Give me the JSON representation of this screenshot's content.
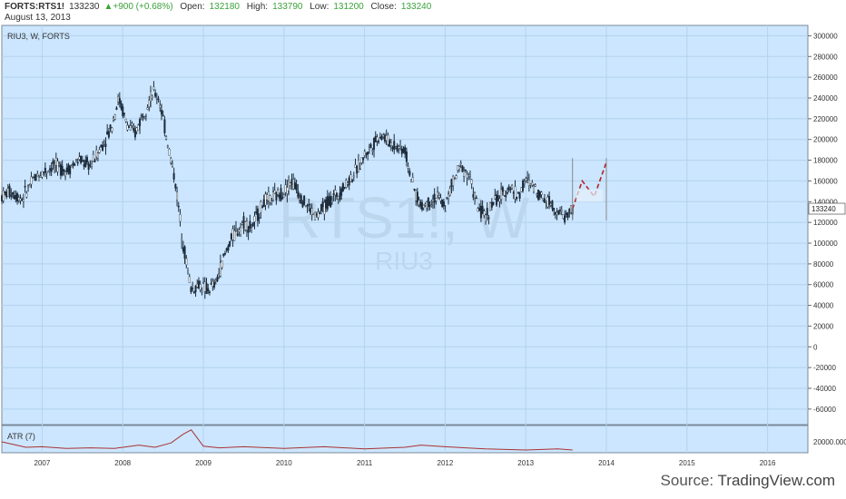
{
  "header": {
    "symbol": "FORTS:RTS1!",
    "last": "133230",
    "change": "▲+900 (+0.68%)",
    "open_label": "Open:",
    "open": "132180",
    "high_label": "High:",
    "high": "133790",
    "low_label": "Low:",
    "low": "131200",
    "close_label": "Close:",
    "close": "133240",
    "date": "August 13, 2013"
  },
  "pane_label": "RIU3, W, FORTS",
  "watermark": {
    "main": "RTS1!, W",
    "sub": "RIU3"
  },
  "atr_label": "ATR (7)",
  "source_prefix": "Source:",
  "source_name": "TradingView.com",
  "colors": {
    "background": "#cce6ff",
    "candle": "#1c2b3a",
    "atr_line": "#a83232",
    "projection": "#b22222",
    "price_tag": "#ffffff"
  },
  "chart_data": [
    {
      "type": "candlestick",
      "title": "RIU3, W, FORTS",
      "x_ticks": [
        "2007",
        "2008",
        "2009",
        "2010",
        "2011",
        "2012",
        "2013",
        "2014",
        "2015",
        "2016"
      ],
      "y_ticks": [
        300000,
        280000,
        260000,
        240000,
        220000,
        200000,
        180000,
        160000,
        140000,
        120000,
        100000,
        80000,
        60000,
        40000,
        20000,
        0,
        -20000,
        -40000,
        -60000
      ],
      "ylim": [
        -75000,
        310000
      ],
      "xlim": [
        2006.5,
        2016.5
      ],
      "current_price": 133240,
      "price_path": [
        [
          2006.5,
          145000
        ],
        [
          2006.6,
          150000
        ],
        [
          2006.75,
          143000
        ],
        [
          2006.9,
          162000
        ],
        [
          2007.0,
          168000
        ],
        [
          2007.15,
          175000
        ],
        [
          2007.3,
          170000
        ],
        [
          2007.45,
          180000
        ],
        [
          2007.6,
          175000
        ],
        [
          2007.75,
          195000
        ],
        [
          2007.85,
          210000
        ],
        [
          2007.95,
          240000
        ],
        [
          2008.05,
          215000
        ],
        [
          2008.15,
          205000
        ],
        [
          2008.25,
          225000
        ],
        [
          2008.38,
          245000
        ],
        [
          2008.45,
          240000
        ],
        [
          2008.55,
          200000
        ],
        [
          2008.65,
          160000
        ],
        [
          2008.75,
          100000
        ],
        [
          2008.85,
          55000
        ],
        [
          2008.95,
          60000
        ],
        [
          2009.05,
          55000
        ],
        [
          2009.15,
          60000
        ],
        [
          2009.25,
          85000
        ],
        [
          2009.35,
          105000
        ],
        [
          2009.5,
          120000
        ],
        [
          2009.6,
          115000
        ],
        [
          2009.75,
          140000
        ],
        [
          2009.9,
          145000
        ],
        [
          2010.0,
          150000
        ],
        [
          2010.1,
          160000
        ],
        [
          2010.25,
          140000
        ],
        [
          2010.4,
          125000
        ],
        [
          2010.55,
          140000
        ],
        [
          2010.7,
          150000
        ],
        [
          2010.9,
          170000
        ],
        [
          2011.0,
          185000
        ],
        [
          2011.1,
          195000
        ],
        [
          2011.2,
          205000
        ],
        [
          2011.35,
          195000
        ],
        [
          2011.5,
          190000
        ],
        [
          2011.6,
          155000
        ],
        [
          2011.7,
          135000
        ],
        [
          2011.8,
          140000
        ],
        [
          2011.9,
          145000
        ],
        [
          2012.0,
          135000
        ],
        [
          2012.1,
          160000
        ],
        [
          2012.2,
          175000
        ],
        [
          2012.3,
          165000
        ],
        [
          2012.4,
          135000
        ],
        [
          2012.5,
          125000
        ],
        [
          2012.6,
          140000
        ],
        [
          2012.7,
          145000
        ],
        [
          2012.8,
          155000
        ],
        [
          2012.9,
          145000
        ],
        [
          2013.0,
          160000
        ],
        [
          2013.1,
          155000
        ],
        [
          2013.2,
          145000
        ],
        [
          2013.3,
          140000
        ],
        [
          2013.4,
          130000
        ],
        [
          2013.5,
          125000
        ],
        [
          2013.58,
          133240
        ]
      ],
      "projection": [
        [
          2013.58,
          133000
        ],
        [
          2013.7,
          160000
        ],
        [
          2013.85,
          145000
        ],
        [
          2014.0,
          178000
        ]
      ]
    },
    {
      "type": "line",
      "title": "ATR (7)",
      "y_ticks": [
        20000
      ],
      "ylim": [
        0,
        50000
      ],
      "x": [
        2006.5,
        2006.8,
        2007.0,
        2007.3,
        2007.6,
        2007.9,
        2008.2,
        2008.4,
        2008.6,
        2008.75,
        2008.85,
        2009.0,
        2009.2,
        2009.5,
        2010.0,
        2010.5,
        2011.0,
        2011.5,
        2011.7,
        2012.0,
        2012.5,
        2013.0,
        2013.4,
        2013.58
      ],
      "values": [
        20000,
        10000,
        11000,
        8000,
        9000,
        8000,
        14000,
        10000,
        18000,
        34000,
        42000,
        12000,
        9000,
        11000,
        8000,
        11000,
        7000,
        10000,
        14000,
        11000,
        7000,
        5000,
        7000,
        5000
      ]
    }
  ]
}
